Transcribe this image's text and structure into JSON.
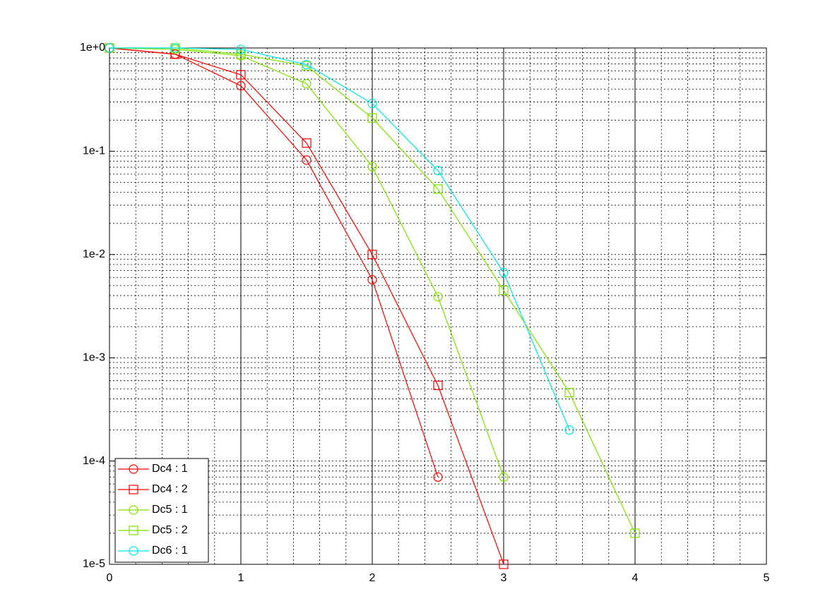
{
  "chart_data": {
    "type": "line",
    "x": [
      0,
      0.5,
      1,
      1.5,
      2,
      2.5,
      3,
      3.5,
      4
    ],
    "series": [
      {
        "name": "Dc4 : 1",
        "color": "#ff0000",
        "marker": "circle",
        "values": [
          1,
          0.87,
          0.43,
          0.082,
          0.0057,
          7e-05,
          null,
          null,
          null
        ]
      },
      {
        "name": "Dc4 : 2",
        "color": "#ff0000",
        "marker": "square",
        "values": [
          1,
          0.87,
          0.55,
          0.12,
          0.01,
          0.00054,
          1e-05,
          null,
          null
        ]
      },
      {
        "name": "Dc5 : 1",
        "color": "#7fe000",
        "marker": "circle",
        "values": [
          1,
          0.97,
          0.84,
          0.45,
          0.071,
          0.0039,
          7e-05,
          null,
          null
        ]
      },
      {
        "name": "Dc5 : 2",
        "color": "#7fe000",
        "marker": "square",
        "values": [
          1,
          1,
          0.87,
          0.67,
          0.21,
          0.043,
          0.0045,
          0.00046,
          2e-05
        ]
      },
      {
        "name": "Dc6 : 1",
        "color": "#00e5e5",
        "marker": "circle",
        "values": [
          1,
          1,
          0.97,
          0.69,
          0.29,
          0.065,
          0.0067,
          0.0002,
          null
        ]
      }
    ],
    "xlim": [
      0,
      5
    ],
    "xticks": [
      0,
      1,
      2,
      3,
      4,
      5
    ],
    "ylim": [
      1e-05,
      1
    ],
    "yscale": "log",
    "yticks": [
      {
        "value": 1,
        "label": "1e+0"
      },
      {
        "value": 0.1,
        "label": "1e-1"
      },
      {
        "value": 0.01,
        "label": "1e-2"
      },
      {
        "value": 0.001,
        "label": "1e-3"
      },
      {
        "value": 0.0001,
        "label": "1e-4"
      },
      {
        "value": 1e-05,
        "label": "1e-5"
      }
    ],
    "grid": true,
    "minor_grid": true,
    "legend": "lower left"
  }
}
